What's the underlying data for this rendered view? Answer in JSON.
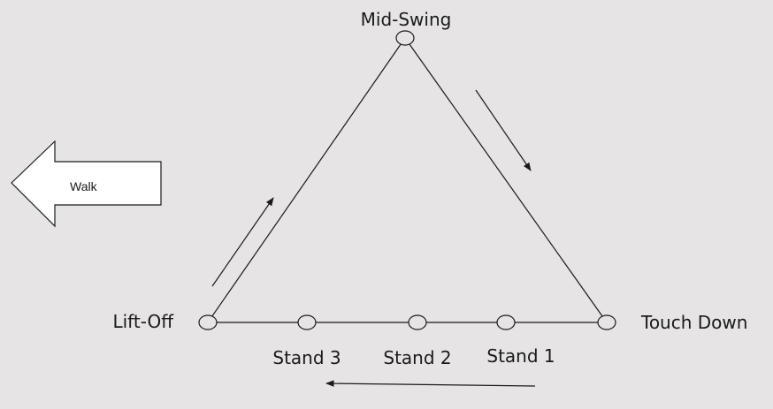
{
  "diagram": {
    "nodes": {
      "mid_swing": "Mid-Swing",
      "lift_off": "Lift-Off",
      "touch_down": "Touch Down",
      "stand_3": "Stand 3",
      "stand_2": "Stand 2",
      "stand_1": "Stand 1"
    },
    "walk_label": "Walk"
  },
  "colors": {
    "background": "#e6e4e5",
    "stroke": "#1a1a1a",
    "walk_fill": "#ffffff"
  }
}
